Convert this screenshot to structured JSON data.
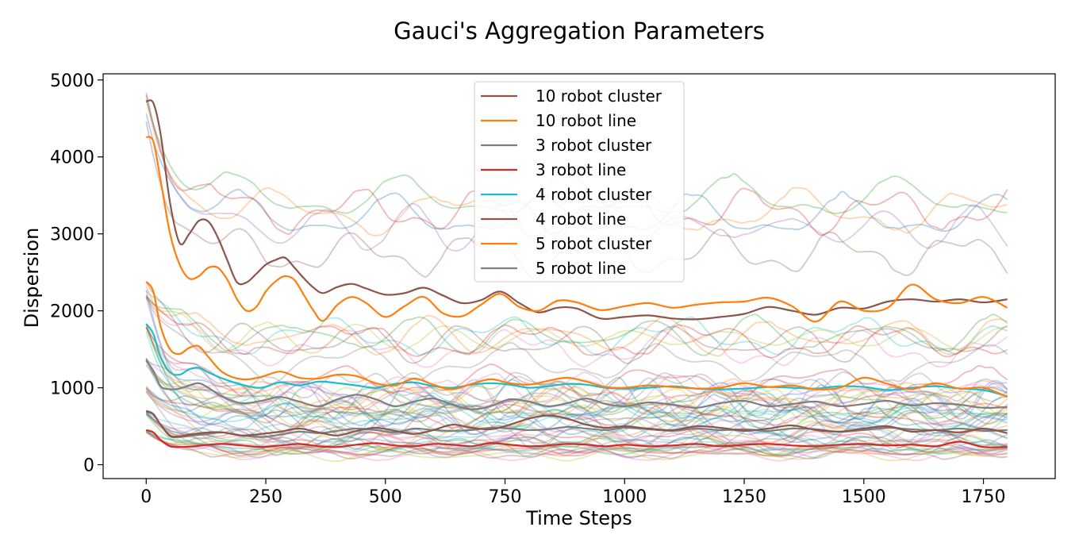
{
  "chart_data": {
    "type": "line",
    "title": "Gauci's Aggregation Parameters",
    "xlabel": "Time Steps",
    "ylabel": "Dispersion",
    "xlim": [
      -90,
      1900
    ],
    "ylim": [
      -180,
      5080
    ],
    "xticks": [
      0,
      250,
      500,
      750,
      1000,
      1250,
      1500,
      1750
    ],
    "yticks": [
      0,
      1000,
      2000,
      3000,
      4000,
      5000
    ],
    "grid": false,
    "legend_position": "top-center",
    "colors": {
      "brown": "#8c564b",
      "orange": "#ff7f0e",
      "gray": "#7f7f7f",
      "red": "#d62728",
      "cyan": "#17becf",
      "background_palette": [
        "#1f77b4",
        "#ff7f0e",
        "#2ca02c",
        "#d62728",
        "#9467bd",
        "#8c564b",
        "#e377c2",
        "#bcbd22",
        "#17becf",
        "#7f7f7f"
      ]
    },
    "series": [
      {
        "name": "10 robot cluster",
        "color": "#8c564b",
        "x": [
          0,
          15,
          30,
          50,
          70,
          90,
          110,
          130,
          150,
          170,
          190,
          210,
          230,
          250,
          270,
          290,
          310,
          330,
          350,
          370,
          400,
          430,
          460,
          500,
          540,
          580,
          620,
          660,
          700,
          740,
          780,
          820,
          860,
          900,
          950,
          1000,
          1050,
          1100,
          1150,
          1200,
          1250,
          1300,
          1350,
          1400,
          1450,
          1500,
          1550,
          1600,
          1650,
          1700,
          1750,
          1800
        ],
        "y": [
          4720,
          4700,
          4300,
          3400,
          2880,
          3000,
          3170,
          3160,
          2950,
          2650,
          2370,
          2370,
          2480,
          2600,
          2660,
          2690,
          2560,
          2420,
          2300,
          2230,
          2310,
          2350,
          2290,
          2210,
          2230,
          2300,
          2200,
          2100,
          2140,
          2250,
          2100,
          1980,
          2040,
          2030,
          1900,
          1920,
          1940,
          1900,
          1890,
          1920,
          1960,
          2050,
          2000,
          1950,
          2040,
          2030,
          2120,
          2150,
          2120,
          2150,
          2110,
          2150
        ]
      },
      {
        "name": "10 robot line",
        "color": "#ff7f0e",
        "x": [
          0,
          15,
          30,
          50,
          70,
          90,
          110,
          130,
          150,
          170,
          190,
          210,
          230,
          250,
          270,
          290,
          310,
          330,
          350,
          370,
          400,
          430,
          460,
          500,
          540,
          580,
          620,
          660,
          700,
          740,
          780,
          820,
          860,
          900,
          950,
          1000,
          1050,
          1100,
          1150,
          1200,
          1250,
          1300,
          1350,
          1400,
          1450,
          1500,
          1550,
          1600,
          1650,
          1700,
          1750,
          1800
        ],
        "y": [
          4260,
          4200,
          3700,
          3000,
          2600,
          2420,
          2450,
          2560,
          2560,
          2400,
          2150,
          2000,
          2050,
          2250,
          2380,
          2450,
          2400,
          2200,
          2000,
          1870,
          2080,
          2180,
          2100,
          1920,
          2060,
          2180,
          1970,
          1930,
          2080,
          2220,
          2050,
          2000,
          2130,
          2110,
          2010,
          2060,
          2100,
          2040,
          2080,
          2110,
          2120,
          2170,
          2060,
          1860,
          2120,
          2000,
          2040,
          2340,
          2150,
          2100,
          2180,
          2040
        ]
      },
      {
        "name": "3 robot cluster",
        "color": "#7f7f7f",
        "x": [
          0,
          15,
          30,
          50,
          70,
          100,
          130,
          160,
          200,
          240,
          280,
          320,
          360,
          400,
          440,
          480,
          520,
          560,
          600,
          640,
          680,
          720,
          760,
          800,
          840,
          880,
          920,
          960,
          1000,
          1050,
          1100,
          1150,
          1200,
          1250,
          1300,
          1350,
          1400,
          1450,
          1500,
          1550,
          1600,
          1650,
          1700,
          1750,
          1800
        ],
        "y": [
          690,
          650,
          520,
          370,
          360,
          380,
          400,
          420,
          380,
          360,
          390,
          430,
          410,
          440,
          470,
          450,
          420,
          470,
          450,
          440,
          450,
          480,
          470,
          450,
          460,
          490,
          470,
          450,
          480,
          460,
          440,
          470,
          450,
          460,
          440,
          470,
          460,
          430,
          450,
          480,
          460,
          450,
          470,
          440,
          450
        ]
      },
      {
        "name": "3 robot line",
        "color": "#d62728",
        "x": [
          0,
          15,
          30,
          50,
          70,
          100,
          130,
          160,
          200,
          240,
          280,
          320,
          360,
          400,
          440,
          480,
          520,
          560,
          600,
          640,
          680,
          720,
          760,
          800,
          840,
          880,
          920,
          960,
          1000,
          1050,
          1100,
          1150,
          1200,
          1250,
          1300,
          1350,
          1400,
          1450,
          1500,
          1550,
          1600,
          1650,
          1700,
          1750,
          1800
        ],
        "y": [
          450,
          420,
          320,
          240,
          230,
          240,
          260,
          270,
          250,
          230,
          250,
          270,
          240,
          230,
          260,
          280,
          250,
          240,
          270,
          260,
          240,
          280,
          260,
          240,
          250,
          270,
          260,
          240,
          260,
          240,
          250,
          270,
          240,
          260,
          270,
          250,
          240,
          260,
          270,
          250,
          260,
          240,
          300,
          230,
          230
        ]
      },
      {
        "name": "4 robot cluster",
        "color": "#17becf",
        "x": [
          0,
          15,
          30,
          50,
          70,
          90,
          110,
          130,
          160,
          200,
          240,
          280,
          320,
          360,
          400,
          440,
          480,
          520,
          560,
          600,
          640,
          680,
          720,
          760,
          800,
          840,
          880,
          920,
          960,
          1000,
          1050,
          1100,
          1150,
          1200,
          1250,
          1300,
          1350,
          1400,
          1450,
          1500,
          1550,
          1600,
          1650,
          1700,
          1750,
          1800
        ],
        "y": [
          1830,
          1700,
          1400,
          1200,
          1170,
          1240,
          1260,
          1200,
          1120,
          1040,
          1000,
          1070,
          1030,
          1080,
          1060,
          1030,
          1000,
          1050,
          1070,
          1020,
          1000,
          1040,
          1060,
          1040,
          1000,
          1020,
          1050,
          1040,
          1000,
          990,
          1000,
          1020,
          990,
          980,
          990,
          1010,
          1000,
          990,
          1020,
          1010,
          970,
          1000,
          1020,
          990,
          970,
          890
        ]
      },
      {
        "name": "4 robot line",
        "color": "#8c564b",
        "x": [
          0,
          15,
          30,
          50,
          70,
          100,
          130,
          160,
          200,
          240,
          280,
          320,
          360,
          400,
          440,
          480,
          520,
          560,
          600,
          640,
          680,
          720,
          760,
          800,
          840,
          880,
          920,
          960,
          1000,
          1050,
          1100,
          1150,
          1200,
          1250,
          1300,
          1350,
          1400,
          1450,
          1500,
          1550,
          1600,
          1650,
          1700,
          1750,
          1800
        ],
        "y": [
          700,
          660,
          520,
          380,
          370,
          400,
          420,
          420,
          380,
          400,
          430,
          470,
          420,
          380,
          440,
          480,
          440,
          400,
          450,
          520,
          480,
          460,
          520,
          600,
          640,
          600,
          520,
          480,
          500,
          470,
          450,
          500,
          480,
          440,
          470,
          510,
          450,
          430,
          470,
          500,
          430,
          450,
          420,
          470,
          410
        ]
      },
      {
        "name": "5 robot cluster",
        "color": "#ff7f0e",
        "x": [
          0,
          15,
          30,
          50,
          70,
          90,
          110,
          130,
          160,
          200,
          240,
          280,
          320,
          360,
          400,
          440,
          480,
          520,
          560,
          600,
          640,
          680,
          720,
          760,
          800,
          840,
          880,
          920,
          960,
          1000,
          1050,
          1100,
          1150,
          1200,
          1250,
          1300,
          1350,
          1400,
          1450,
          1500,
          1550,
          1600,
          1650,
          1700,
          1750,
          1800
        ],
        "y": [
          2380,
          2250,
          1800,
          1500,
          1440,
          1520,
          1540,
          1400,
          1200,
          1110,
          1140,
          1210,
          1130,
          1120,
          1170,
          1150,
          1060,
          1030,
          1120,
          1040,
          980,
          1050,
          1110,
          1060,
          1040,
          1090,
          1130,
          1080,
          1010,
          1000,
          1030,
          1010,
          990,
          1000,
          1060,
          1010,
          1030,
          980,
          1000,
          1130,
          1050,
          980,
          1060,
          990,
          1000,
          880
        ]
      },
      {
        "name": "5 robot line",
        "color": "#7f7f7f",
        "x": [
          0,
          15,
          30,
          50,
          70,
          90,
          110,
          130,
          160,
          200,
          240,
          280,
          320,
          360,
          400,
          440,
          480,
          520,
          560,
          600,
          640,
          680,
          720,
          760,
          800,
          840,
          880,
          920,
          960,
          1000,
          1050,
          1100,
          1150,
          1200,
          1250,
          1300,
          1350,
          1400,
          1450,
          1500,
          1550,
          1600,
          1650,
          1700,
          1750,
          1800
        ],
        "y": [
          1350,
          1220,
          1020,
          980,
          990,
          1030,
          1060,
          1000,
          880,
          800,
          830,
          880,
          820,
          760,
          850,
          910,
          850,
          760,
          820,
          860,
          780,
          720,
          760,
          850,
          820,
          760,
          800,
          860,
          790,
          760,
          810,
          780,
          740,
          800,
          830,
          760,
          790,
          820,
          760,
          790,
          830,
          770,
          800,
          780,
          740,
          750
        ]
      }
    ]
  }
}
